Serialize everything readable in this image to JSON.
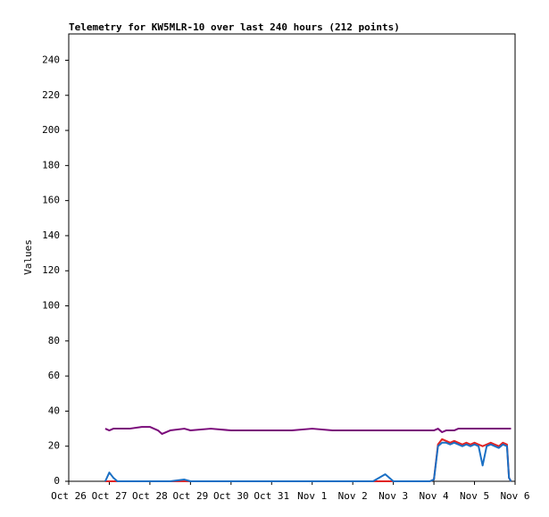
{
  "chart_data": {
    "type": "line",
    "title": "Telemetry for KW5MLR-10 over last 240 hours (212 points)",
    "y_label": "Values",
    "xlim": [
      0,
      11
    ],
    "xticks": [
      {
        "value": 0,
        "label": "Oct 26"
      },
      {
        "value": 1,
        "label": "Oct 27"
      },
      {
        "value": 2,
        "label": "Oct 28"
      },
      {
        "value": 3,
        "label": "Oct 29"
      },
      {
        "value": 4,
        "label": "Oct 30"
      },
      {
        "value": 5,
        "label": "Oct 31"
      },
      {
        "value": 6,
        "label": "Nov 1"
      },
      {
        "value": 7,
        "label": "Nov 2"
      },
      {
        "value": 8,
        "label": "Nov 3"
      },
      {
        "value": 9,
        "label": "Nov 4"
      },
      {
        "value": 10,
        "label": "Nov 5"
      },
      {
        "value": 11,
        "label": "Nov 6"
      }
    ],
    "ylim": [
      0,
      255
    ],
    "yticks": [
      0,
      20,
      40,
      60,
      80,
      100,
      120,
      140,
      160,
      180,
      200,
      220,
      240
    ],
    "grid": false,
    "x": [
      0.9,
      1.0,
      1.1,
      1.2,
      1.3,
      1.5,
      1.8,
      2.0,
      2.2,
      2.3,
      2.5,
      2.85,
      3.0,
      3.5,
      4.0,
      4.5,
      5.0,
      5.5,
      6.0,
      6.5,
      7.0,
      7.5,
      7.8,
      8.0,
      8.5,
      8.9,
      9.0,
      9.1,
      9.2,
      9.3,
      9.4,
      9.5,
      9.6,
      9.7,
      9.8,
      9.9,
      10.0,
      10.1,
      10.2,
      10.3,
      10.4,
      10.5,
      10.6,
      10.7,
      10.8,
      10.85,
      10.9
    ],
    "series": [
      {
        "color": "#7a0a7a",
        "values": [
          30,
          29,
          30,
          30,
          30,
          30,
          31,
          31,
          29,
          27,
          29,
          30,
          29,
          30,
          29,
          29,
          29,
          29,
          30,
          29,
          29,
          29,
          29,
          29,
          29,
          29,
          29,
          30,
          28,
          29,
          29,
          29,
          30,
          30,
          30,
          30,
          30,
          30,
          30,
          30,
          30,
          30,
          30,
          30,
          30,
          30,
          30
        ]
      },
      {
        "color": "#e02424",
        "values": [
          0,
          0,
          0,
          0,
          0,
          0,
          0,
          0,
          0,
          0,
          0,
          0,
          0,
          0,
          0,
          0,
          0,
          0,
          0,
          0,
          0,
          0,
          0,
          0,
          0,
          0,
          1,
          21,
          24,
          23,
          22,
          23,
          22,
          21,
          22,
          21,
          22,
          21,
          20,
          21,
          22,
          21,
          20,
          22,
          21,
          2,
          0
        ]
      },
      {
        "color": "#1a6fc4",
        "values": [
          0,
          5,
          2,
          0,
          0,
          0,
          0,
          0,
          0,
          0,
          0,
          1,
          0,
          0,
          0,
          0,
          0,
          0,
          0,
          0,
          0,
          0,
          4,
          0,
          0,
          0,
          1,
          20,
          22,
          22,
          21,
          22,
          21,
          20,
          21,
          20,
          21,
          20,
          9,
          20,
          21,
          20,
          19,
          21,
          20,
          2,
          0
        ]
      }
    ]
  }
}
